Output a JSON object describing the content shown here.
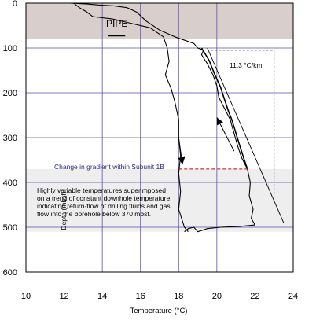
{
  "chart_data": {
    "type": "line",
    "title": "",
    "xlabel": "Temperature (°C)",
    "ylabel": "Depth (mbsf)",
    "xlim": [
      10,
      24
    ],
    "ylim": [
      600,
      0
    ],
    "y_inverted": true,
    "grid": true,
    "x_ticks": [
      "10",
      "12",
      "14",
      "16",
      "18",
      "20",
      "22",
      "24"
    ],
    "y_ticks": [
      "0",
      "100",
      "200",
      "300",
      "400",
      "500",
      "600"
    ],
    "pipe_zone": {
      "label": "PIPE",
      "depth_range": [
        0,
        80
      ],
      "color": "#d8cfcc"
    },
    "variable_zone": {
      "depth_range": [
        370,
        510
      ],
      "color": "#eeeeee"
    },
    "gradient_label": "11.3 °C/km",
    "subunit_label": "Change in gradient within Subunit 1B",
    "subunit_depth": 370,
    "note_lines": [
      "Highly variable temperatures superimposed",
      "on a trend of constant downhole temperature,",
      "indicating return-flow of drilling fluids and gas",
      "flow into the borehole below 370 mbsf."
    ],
    "series": [
      {
        "points": [
          [
            12.3,
            0
          ],
          [
            13.2,
            2
          ],
          [
            13.8,
            4
          ],
          [
            14.6,
            6
          ],
          [
            15.3,
            10
          ],
          [
            15.8,
            20
          ],
          [
            16.3,
            40
          ],
          [
            17.0,
            60
          ],
          [
            17.8,
            75
          ],
          [
            18.8,
            90
          ],
          [
            19.0,
            100
          ],
          [
            19.3,
            105
          ],
          [
            19.2,
            115
          ],
          [
            19.5,
            135
          ],
          [
            19.8,
            160
          ],
          [
            20.0,
            185
          ],
          [
            20.1,
            210
          ],
          [
            20.4,
            235
          ],
          [
            20.7,
            260
          ],
          [
            20.9,
            290
          ],
          [
            21.1,
            320
          ],
          [
            21.3,
            345
          ],
          [
            21.6,
            370
          ],
          [
            21.75,
            400
          ],
          [
            21.7,
            430
          ],
          [
            21.9,
            460
          ],
          [
            21.8,
            480
          ],
          [
            22.0,
            495
          ],
          [
            21.2,
            498
          ],
          [
            20.2,
            500
          ],
          [
            19.5,
            503
          ],
          [
            19.0,
            510
          ],
          [
            18.8,
            500
          ],
          [
            18.5,
            503
          ],
          [
            18.3,
            510
          ]
        ]
      },
      {
        "points": [
          [
            12.5,
            0
          ],
          [
            12.8,
            10
          ],
          [
            13.2,
            20
          ],
          [
            13.5,
            30
          ],
          [
            14.5,
            35
          ],
          [
            15.5,
            45
          ],
          [
            16.5,
            55
          ],
          [
            17.2,
            75
          ],
          [
            17.4,
            100
          ],
          [
            17.5,
            130
          ],
          [
            17.3,
            160
          ],
          [
            17.6,
            190
          ],
          [
            17.8,
            220
          ],
          [
            18.0,
            260
          ],
          [
            18.0,
            300
          ],
          [
            18.1,
            340
          ],
          [
            18.0,
            380
          ],
          [
            18.1,
            420
          ],
          [
            18.0,
            460
          ],
          [
            18.3,
            500
          ],
          [
            18.5,
            510
          ]
        ]
      },
      {
        "points": [
          [
            19.2,
            100
          ],
          [
            19.6,
            128
          ],
          [
            19.9,
            160
          ],
          [
            20.2,
            188
          ],
          [
            20.4,
            215
          ],
          [
            20.6,
            240
          ],
          [
            20.8,
            262
          ],
          [
            21.0,
            290
          ],
          [
            21.2,
            318
          ],
          [
            21.4,
            345
          ],
          [
            21.6,
            370
          ]
        ]
      }
    ],
    "gradient_line": {
      "points": [
        [
          19.5,
          100
        ],
        [
          23.5,
          490
        ]
      ]
    },
    "gradient_bracket": {
      "x": 23.0,
      "depth_range": [
        105,
        430
      ],
      "x_start": 19.7
    },
    "arrows": [
      {
        "from": [
          18.0,
          300
        ],
        "to": [
          18.2,
          360
        ],
        "direction": "down"
      },
      {
        "from": [
          20.9,
          330
        ],
        "to": [
          20.0,
          255
        ],
        "direction": "up"
      }
    ]
  }
}
